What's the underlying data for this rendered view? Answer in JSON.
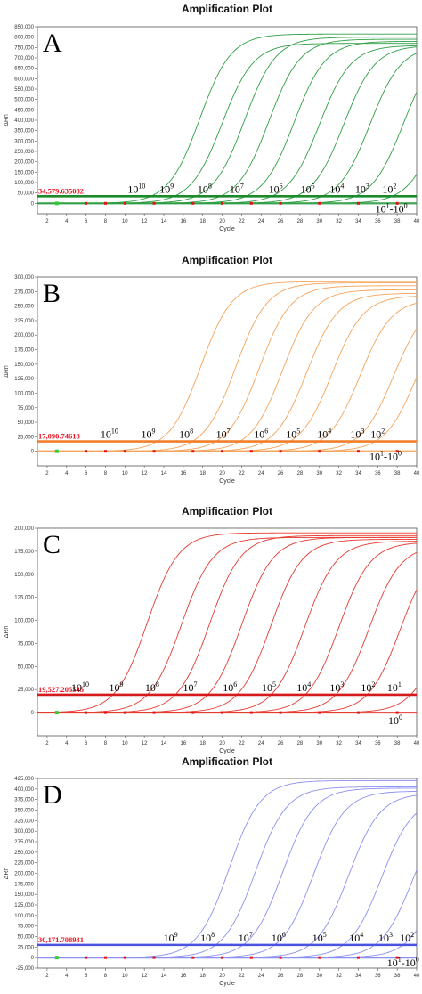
{
  "panels": [
    {
      "letter": "A",
      "title": "Amplification Plot",
      "xlabel": "Cycle",
      "ylabel": "ΔRn",
      "threshold_label": "34,579.635082",
      "threshold": 34579.635082,
      "color": "#2e9e44",
      "threshold_color": "#1a8a2a",
      "ylim": [
        -50000,
        850000
      ],
      "yticks": [
        0,
        50000,
        100000,
        150000,
        200000,
        250000,
        300000,
        350000,
        400000,
        450000,
        500000,
        550000,
        600000,
        650000,
        700000,
        750000,
        800000,
        850000
      ],
      "ytick_labels": [
        "0",
        "50,000",
        "100,000",
        "150,000",
        "200,000",
        "250,000",
        "300,000",
        "350,000",
        "400,000",
        "450,000",
        "500,000",
        "550,000",
        "600,000",
        "650,000",
        "700,000",
        "750,000",
        "800,000",
        "850,000"
      ],
      "curves": [
        {
          "ct": 15.5,
          "max": 815000
        },
        {
          "ct": 17.8,
          "max": 770000
        },
        {
          "ct": 20.1,
          "max": 800000
        },
        {
          "ct": 22.6,
          "max": 790000
        },
        {
          "ct": 25.2,
          "max": 780000
        },
        {
          "ct": 27.8,
          "max": 760000
        },
        {
          "ct": 30.3,
          "max": 760000
        },
        {
          "ct": 33.0,
          "max": 760000
        },
        {
          "ct": 36.4,
          "max": 760000
        },
        {
          "ct": 40.2,
          "max": 760000
        }
      ],
      "conc_labels": [
        {
          "base": "10",
          "sup": "10",
          "x": 11.2
        },
        {
          "base": "10",
          "sup": "9",
          "x": 14.3
        },
        {
          "base": "10",
          "sup": "8",
          "x": 18.2
        },
        {
          "base": "10",
          "sup": "7",
          "x": 21.5
        },
        {
          "base": "10",
          "sup": "6",
          "x": 25.5
        },
        {
          "base": "10",
          "sup": "5",
          "x": 28.8
        },
        {
          "base": "10",
          "sup": "4",
          "x": 31.8
        },
        {
          "base": "10",
          "sup": "3",
          "x": 34.4
        },
        {
          "base": "10",
          "sup": "2",
          "x": 37.2
        }
      ],
      "range_label": {
        "a": "10",
        "a_sup": "1",
        "b": "-10",
        "b_sup": "0",
        "x": 37.4
      }
    },
    {
      "letter": "B",
      "title": "Amplification Plot",
      "xlabel": "Cycle",
      "ylabel": "ΔRn",
      "threshold_label": "17,090.74618",
      "threshold": 17090.74618,
      "color": "#f5a35a",
      "threshold_color": "#f07e2a",
      "ylim": [
        -25000,
        300000
      ],
      "yticks": [
        0,
        25000,
        50000,
        75000,
        100000,
        125000,
        150000,
        175000,
        200000,
        225000,
        250000,
        275000,
        300000
      ],
      "ytick_labels": [
        "0",
        "25,000",
        "50,000",
        "75,000",
        "100,000",
        "125,000",
        "150,000",
        "175,000",
        "200,000",
        "225,000",
        "250,000",
        "275,000",
        "300,000"
      ],
      "curves": [
        {
          "ct": 15.6,
          "max": 292000
        },
        {
          "ct": 19.2,
          "max": 290000
        },
        {
          "ct": 21.6,
          "max": 285000
        },
        {
          "ct": 24.0,
          "max": 278000
        },
        {
          "ct": 26.5,
          "max": 272000
        },
        {
          "ct": 29.1,
          "max": 268000
        },
        {
          "ct": 32.0,
          "max": 262000
        },
        {
          "ct": 35.4,
          "max": 258000
        },
        {
          "ct": 37.8,
          "max": 256000
        }
      ],
      "conc_labels": [
        {
          "base": "10",
          "sup": "10",
          "x": 8.4
        },
        {
          "base": "10",
          "sup": "9",
          "x": 12.4
        },
        {
          "base": "10",
          "sup": "8",
          "x": 16.3
        },
        {
          "base": "10",
          "sup": "7",
          "x": 20.1
        },
        {
          "base": "10",
          "sup": "6",
          "x": 24.0
        },
        {
          "base": "10",
          "sup": "5",
          "x": 27.3
        },
        {
          "base": "10",
          "sup": "4",
          "x": 30.5
        },
        {
          "base": "10",
          "sup": "3",
          "x": 33.9
        },
        {
          "base": "10",
          "sup": "2",
          "x": 36.0
        }
      ],
      "range_label": {
        "a": "10",
        "a_sup": "1",
        "b": "-10",
        "b_sup": "0",
        "x": 36.8
      }
    },
    {
      "letter": "C",
      "title": "Amplification Plot",
      "xlabel": "Cycle",
      "ylabel": "ΔRn",
      "threshold_label": "19,527.205545",
      "threshold": 19527.205545,
      "color": "#e53a2f",
      "threshold_color": "#d41a1a",
      "ylim": [
        -25000,
        200000
      ],
      "yticks": [
        0,
        25000,
        50000,
        75000,
        100000,
        125000,
        150000,
        175000,
        200000
      ],
      "ytick_labels": [
        "0",
        "25,000",
        "50,000",
        "75,000",
        "100,000",
        "125,000",
        "150,000",
        "175,000",
        "200,000"
      ],
      "curves": [
        {
          "ct": 10.1,
          "max": 195000
        },
        {
          "ct": 13.6,
          "max": 190000
        },
        {
          "ct": 16.5,
          "max": 192000
        },
        {
          "ct": 19.8,
          "max": 190000
        },
        {
          "ct": 22.8,
          "max": 188000
        },
        {
          "ct": 26.3,
          "max": 186000
        },
        {
          "ct": 29.8,
          "max": 185000
        },
        {
          "ct": 32.9,
          "max": 182000
        },
        {
          "ct": 36.1,
          "max": 180000
        },
        {
          "ct": 40.5,
          "max": 172000
        }
      ],
      "conc_labels": [
        {
          "base": "10",
          "sup": "10",
          "x": 5.4
        },
        {
          "base": "10",
          "sup": "9",
          "x": 9.1
        },
        {
          "base": "10",
          "sup": "8",
          "x": 12.8
        },
        {
          "base": "10",
          "sup": "7",
          "x": 16.7
        },
        {
          "base": "10",
          "sup": "6",
          "x": 20.8
        },
        {
          "base": "10",
          "sup": "5",
          "x": 24.8
        },
        {
          "base": "10",
          "sup": "4",
          "x": 28.4
        },
        {
          "base": "10",
          "sup": "3",
          "x": 31.8
        },
        {
          "base": "10",
          "sup": "2",
          "x": 35.0
        },
        {
          "base": "10",
          "sup": "1",
          "x": 37.7
        }
      ],
      "extra_label": {
        "base": "10",
        "sup": "0",
        "x": 37.8
      },
      "range_label": null
    },
    {
      "letter": "D",
      "title": "Amplification Plot",
      "xlabel": "Cycle",
      "ylabel": "ΔRn",
      "threshold_label": "30,171.708931",
      "threshold": 30171.708931,
      "color": "#8a8ff0",
      "threshold_color": "#4a52e0",
      "ylim": [
        -25000,
        425000
      ],
      "yticks": [
        -25000,
        0,
        25000,
        50000,
        75000,
        100000,
        125000,
        150000,
        175000,
        200000,
        225000,
        250000,
        275000,
        300000,
        325000,
        350000,
        375000,
        400000,
        425000
      ],
      "ytick_labels": [
        "-25,000",
        "0",
        "25,000",
        "50,000",
        "75,000",
        "100,000",
        "125,000",
        "150,000",
        "175,000",
        "200,000",
        "225,000",
        "250,000",
        "275,000",
        "300,000",
        "325,000",
        "350,000",
        "375,000",
        "400,000",
        "425,000"
      ],
      "curves": [
        {
          "ct": 18.5,
          "max": 420000
        },
        {
          "ct": 21.2,
          "max": 405000
        },
        {
          "ct": 24.0,
          "max": 402000
        },
        {
          "ct": 27.2,
          "max": 395000
        },
        {
          "ct": 30.8,
          "max": 390000
        },
        {
          "ct": 34.2,
          "max": 380000
        },
        {
          "ct": 37.4,
          "max": 370000
        },
        {
          "ct": 40.3,
          "max": 370000
        }
      ],
      "conc_labels": [
        {
          "base": "10",
          "sup": "9",
          "x": 14.7
        },
        {
          "base": "10",
          "sup": "8",
          "x": 18.5
        },
        {
          "base": "10",
          "sup": "7",
          "x": 22.4
        },
        {
          "base": "10",
          "sup": "6",
          "x": 25.8
        },
        {
          "base": "10",
          "sup": "5",
          "x": 30.0
        },
        {
          "base": "10",
          "sup": "4",
          "x": 33.8
        },
        {
          "base": "10",
          "sup": "3",
          "x": 36.8
        },
        {
          "base": "10",
          "sup": "2",
          "x": 39.0
        }
      ],
      "range_label": {
        "a": "10",
        "a_sup": "1",
        "b": "-10",
        "b_sup": "0",
        "x": 38.6
      }
    }
  ],
  "xticks": [
    2,
    4,
    6,
    8,
    10,
    12,
    14,
    16,
    18,
    20,
    22,
    24,
    26,
    28,
    30,
    32,
    34,
    36,
    38,
    40
  ],
  "chart_data": [
    {
      "type": "line",
      "title": "Amplification Plot",
      "xlabel": "Cycle",
      "ylabel": "ΔRn",
      "xlim": [
        1,
        40
      ],
      "ylim": [
        -50000,
        850000
      ],
      "threshold": 34579.635082,
      "legend": "none"
    },
    {
      "type": "line",
      "title": "Amplification Plot",
      "xlabel": "Cycle",
      "ylabel": "ΔRn",
      "xlim": [
        1,
        40
      ],
      "ylim": [
        -25000,
        300000
      ],
      "threshold": 17090.74618,
      "legend": "none"
    },
    {
      "type": "line",
      "title": "Amplification Plot",
      "xlabel": "Cycle",
      "ylabel": "ΔRn",
      "xlim": [
        1,
        40
      ],
      "ylim": [
        -25000,
        200000
      ],
      "threshold": 19527.205545,
      "legend": "none"
    },
    {
      "type": "line",
      "title": "Amplification Plot",
      "xlabel": "Cycle",
      "ylabel": "ΔRn",
      "xlim": [
        1,
        40
      ],
      "ylim": [
        -25000,
        425000
      ],
      "threshold": 30171.708931,
      "legend": "none"
    }
  ]
}
